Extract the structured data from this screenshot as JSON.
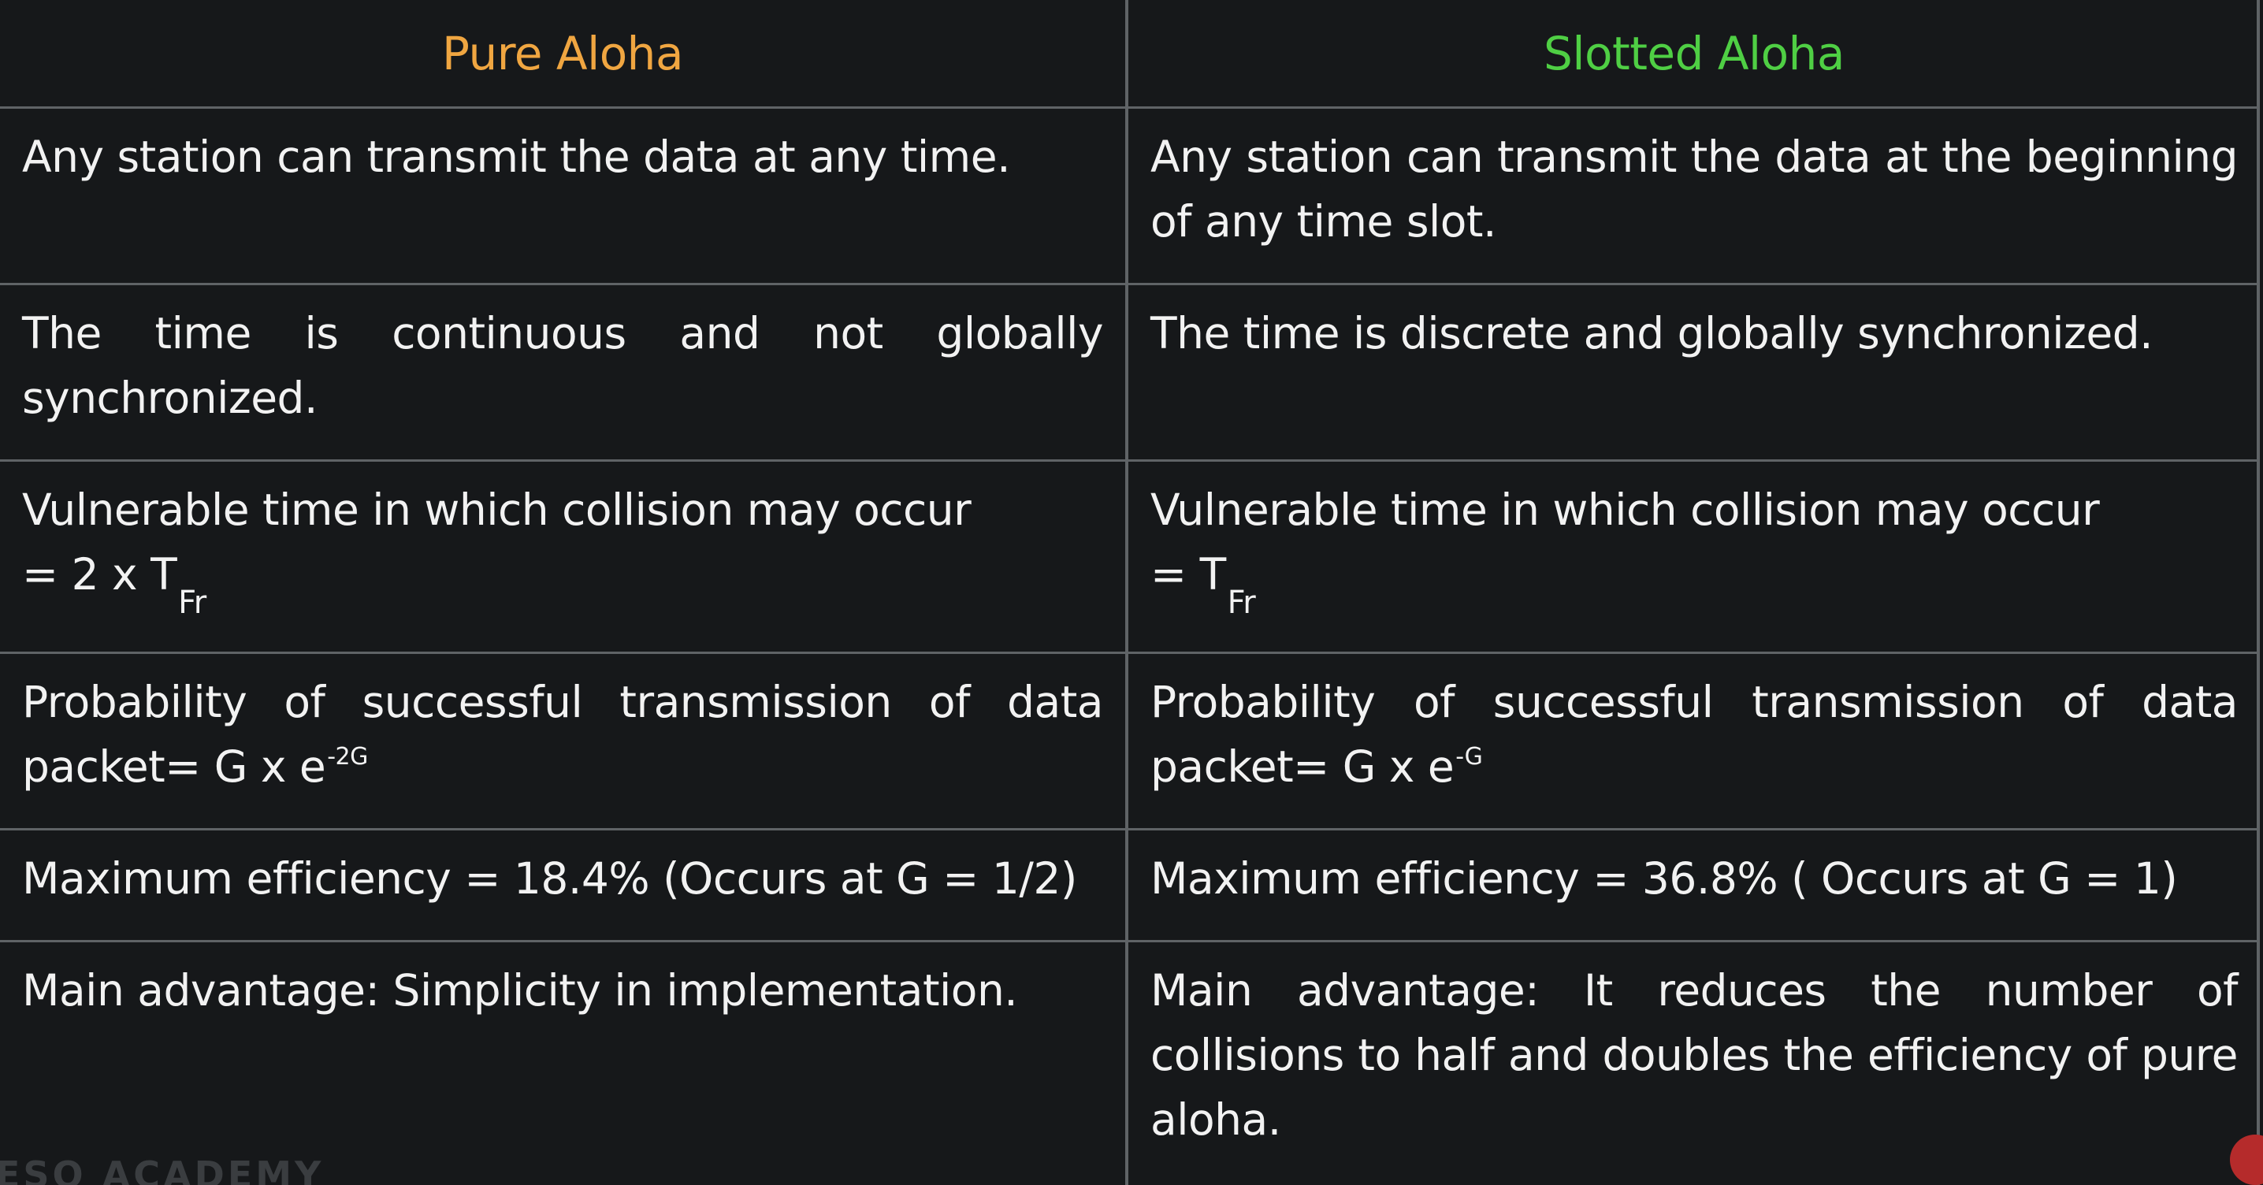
{
  "table": {
    "headers": {
      "pure": "Pure Aloha",
      "slotted": "Slotted Aloha"
    },
    "rows": [
      {
        "pure": "Any station can transmit the data at any time.",
        "slotted": "Any station can transmit the data at the beginning of any time slot."
      },
      {
        "pure": "The time is continuous and not globally synchronized.",
        "slotted": "The time is discrete and globally synchronized."
      },
      {
        "pure_line1": "Vulnerable time in which collision may occur",
        "pure_line2": "= 2 x T",
        "pure_sub": "Fr",
        "slotted_line1": "Vulnerable time in which collision may occur",
        "slotted_line2": "= T",
        "slotted_sub": "Fr"
      },
      {
        "pure": "Probability of successful transmission of data packet= G x e",
        "pure_sup": "-2G",
        "slotted": "Probability of successful transmission of data packet= G x e",
        "slotted_sup": "-G"
      },
      {
        "pure": "Maximum efficiency = 18.4% (Occurs at G = 1/2)",
        "slotted": "Maximum efficiency = 36.8% ( Occurs at G = 1)"
      },
      {
        "pure": "Main advantage: Simplicity in implementation.",
        "slotted": "Main advantage: It reduces the number of collisions to half and doubles the efficiency of pure aloha."
      }
    ]
  },
  "watermark": "ESO ACADEMY",
  "colors": {
    "background": "#16181a",
    "pure_header": "#f0a641",
    "slotted_header": "#4fcf44",
    "grid": "#5f6366",
    "text": "#f2f2f2"
  }
}
